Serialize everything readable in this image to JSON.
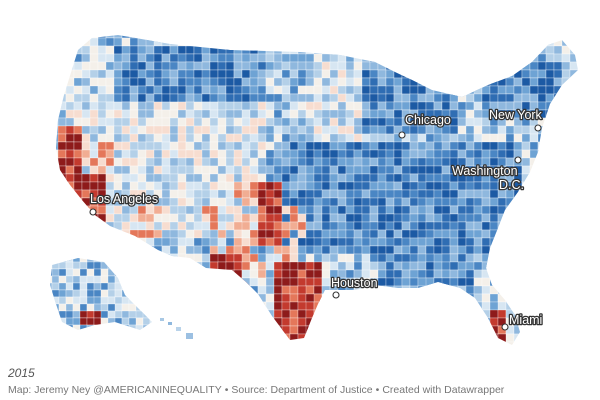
{
  "map": {
    "region": "Contiguous United States, Alaska and Hawaii",
    "unit": "county",
    "color_scale": {
      "low": "#8e1b1b",
      "mid_low": "#e4775a",
      "neutral": "#f4f0ea",
      "mid_high": "#6ea3d4",
      "high": "#1c5aa4"
    },
    "cities": [
      {
        "name": "Los Angeles"
      },
      {
        "name": "Chicago"
      },
      {
        "name": "New York"
      },
      {
        "name": "Washington D.C."
      },
      {
        "name": "Houston"
      },
      {
        "name": "Miami"
      }
    ]
  },
  "caption": {
    "year": "2015",
    "author": "Map: Jeremy Ney @AMERICANINEQUALITY",
    "source": "Source: Department of Justice",
    "credit": "Created with Datawrapper",
    "separator": "•"
  }
}
